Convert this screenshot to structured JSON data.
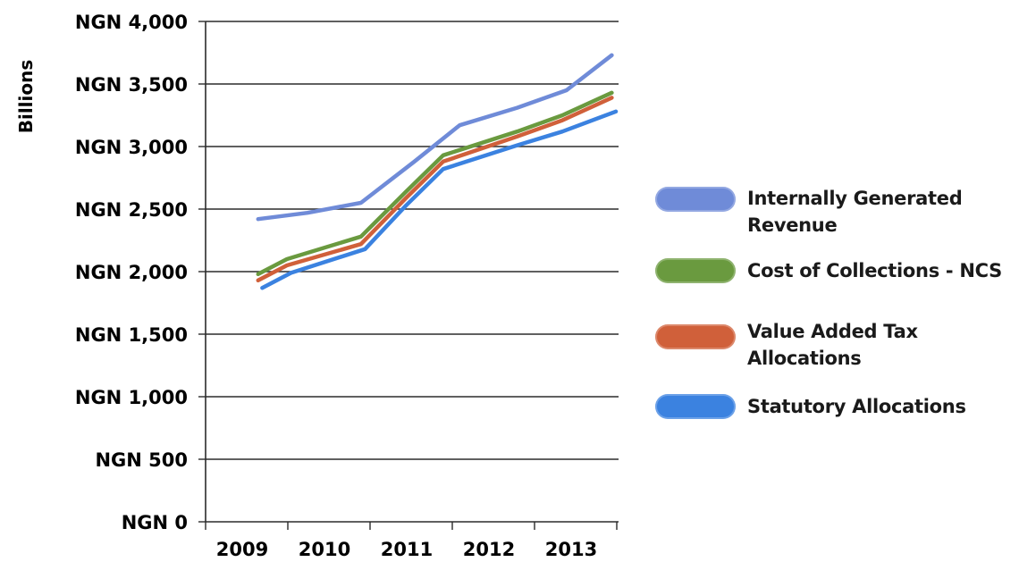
{
  "chart_data": {
    "type": "line",
    "title": "",
    "xlabel": "",
    "ylabel": "Billions",
    "categories": [
      "2009",
      "2010",
      "2011",
      "2012",
      "2013"
    ],
    "y_tick_labels": [
      "NGN 0",
      "NGN 500",
      "NGN 1,000",
      "NGN 1,500",
      "NGN 2,000",
      "NGN 2,500",
      "NGN 3,000",
      "NGN 3,500",
      "NGN 4,000"
    ],
    "y_ticks": [
      0,
      500,
      1000,
      1500,
      2000,
      2500,
      3000,
      3500,
      4000
    ],
    "ylim": [
      0,
      4000
    ],
    "grid": true,
    "legend_position": "right",
    "series": [
      {
        "name": "Internally Generated Revenue",
        "color": "#6f8bd8",
        "x": [
          2009.15,
          2009.75,
          2010.4,
          2011.05,
          2011.6,
          2012.3,
          2012.9,
          2013.45
        ],
        "values": [
          2420,
          2470,
          2550,
          2880,
          3170,
          3310,
          3450,
          3730
        ]
      },
      {
        "name": "Cost of Collections - NCS",
        "color": "#6a9a3f",
        "x": [
          2009.15,
          2009.5,
          2010.4,
          2010.95,
          2011.4,
          2012.3,
          2012.85,
          2013.45
        ],
        "values": [
          1980,
          2100,
          2280,
          2640,
          2930,
          3120,
          3250,
          3430
        ]
      },
      {
        "name": "Value Added Tax Allocations",
        "color": "#d0603a",
        "x": [
          2009.15,
          2009.5,
          2010.4,
          2010.95,
          2011.4,
          2012.3,
          2012.85,
          2013.45
        ],
        "values": [
          1930,
          2050,
          2220,
          2590,
          2880,
          3080,
          3210,
          3390
        ]
      },
      {
        "name": "Statutory Allocations",
        "color": "#3b82e0",
        "x": [
          2009.2,
          2009.55,
          2010.45,
          2010.95,
          2011.4,
          2012.3,
          2012.85,
          2013.5
        ],
        "values": [
          1870,
          1990,
          2180,
          2530,
          2820,
          3010,
          3120,
          3280
        ]
      }
    ]
  }
}
